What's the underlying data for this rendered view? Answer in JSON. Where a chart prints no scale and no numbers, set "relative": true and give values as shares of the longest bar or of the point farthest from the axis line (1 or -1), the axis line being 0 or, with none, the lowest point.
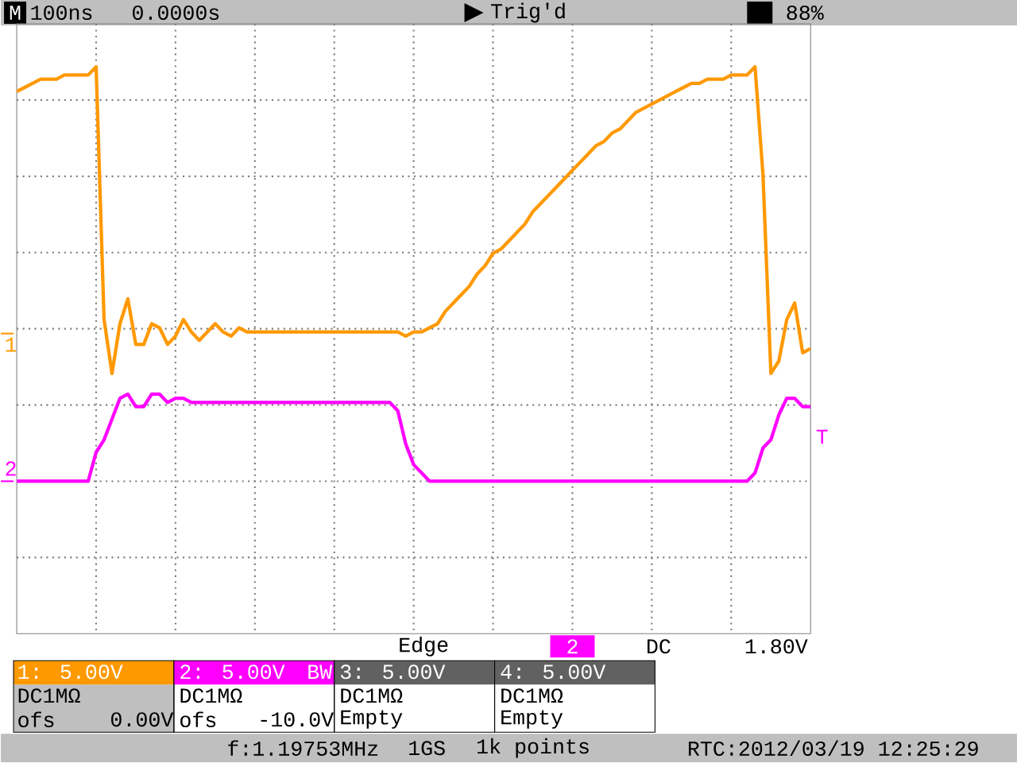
{
  "chart_data": {
    "type": "line",
    "relative": true,
    "grid": true,
    "marker": "none",
    "categories": [
      null,
      null,
      null,
      null,
      null,
      null,
      null,
      null,
      null,
      null,
      null,
      null,
      null,
      null,
      null,
      null,
      null,
      null,
      null,
      null,
      null,
      null,
      null,
      null,
      null,
      null,
      null,
      null,
      null,
      null,
      null,
      null,
      null,
      null,
      null,
      null,
      null,
      null,
      null,
      null,
      null,
      null,
      null,
      null,
      null,
      null,
      null,
      null,
      null,
      null,
      null,
      null,
      null,
      null,
      null,
      null,
      null,
      null,
      null,
      null,
      null,
      null,
      null,
      null,
      null,
      null,
      null,
      null,
      null,
      null,
      null,
      null,
      null,
      null,
      null,
      null,
      null,
      null,
      null,
      null,
      null,
      null,
      null,
      null,
      null,
      null,
      null,
      null,
      null,
      null,
      null,
      null,
      null,
      null,
      null,
      null,
      null,
      null,
      null,
      null,
      null
    ],
    "series": [
      {
        "color": "#ff9900",
        "values": [
          0.94,
          0.95,
          0.96,
          0.97,
          0.97,
          0.97,
          0.98,
          0.98,
          0.98,
          0.98,
          1.0,
          0.39,
          0.26,
          0.38,
          0.44,
          0.33,
          0.33,
          0.38,
          0.37,
          0.33,
          0.35,
          0.39,
          0.36,
          0.34,
          0.36,
          0.38,
          0.36,
          0.35,
          0.37,
          0.36,
          0.36,
          0.36,
          0.36,
          0.36,
          0.36,
          0.36,
          0.36,
          0.36,
          0.36,
          0.36,
          0.36,
          0.36,
          0.36,
          0.36,
          0.36,
          0.36,
          0.36,
          0.36,
          0.36,
          0.35,
          0.36,
          0.36,
          0.37,
          0.38,
          0.41,
          0.43,
          0.45,
          0.47,
          0.5,
          0.52,
          0.55,
          0.56,
          0.58,
          0.6,
          0.62,
          0.65,
          0.67,
          0.69,
          0.71,
          0.73,
          0.75,
          0.77,
          0.79,
          0.81,
          0.82,
          0.84,
          0.85,
          0.87,
          0.89,
          0.9,
          0.91,
          0.92,
          0.93,
          0.94,
          0.95,
          0.96,
          0.96,
          0.97,
          0.97,
          0.97,
          0.98,
          0.98,
          0.98,
          1.0,
          0.74,
          0.26,
          0.29,
          0.39,
          0.43,
          0.31,
          0.32
        ]
      },
      {
        "color": "#ff00ff",
        "values": [
          0,
          0,
          0,
          0,
          0,
          0,
          0,
          0,
          0,
          0,
          0.07,
          0.1,
          0.15,
          0.2,
          0.21,
          0.18,
          0.18,
          0.21,
          0.21,
          0.19,
          0.2,
          0.2,
          0.19,
          0.19,
          0.19,
          0.19,
          0.19,
          0.19,
          0.19,
          0.19,
          0.19,
          0.19,
          0.19,
          0.19,
          0.19,
          0.19,
          0.19,
          0.19,
          0.19,
          0.19,
          0.19,
          0.19,
          0.19,
          0.19,
          0.19,
          0.19,
          0.19,
          0.19,
          0.17,
          0.09,
          0.04,
          0.02,
          0.0,
          0,
          0,
          0,
          0,
          0,
          0,
          0,
          0,
          0,
          0,
          0,
          0,
          0,
          0,
          0,
          0,
          0,
          0,
          0,
          0,
          0,
          0,
          0,
          0,
          0,
          0,
          0,
          0,
          0,
          0,
          0,
          0,
          0,
          0,
          0,
          0,
          0,
          0,
          0,
          0,
          0.02,
          0.08,
          0.1,
          0.16,
          0.2,
          0.2,
          0.18,
          0.18
        ]
      }
    ],
    "annotations": [
      "100ns",
      "0.0000s",
      "Trig'd",
      "88%",
      "Edge",
      "2",
      "DC",
      "1.80V",
      "1: 5.00V",
      "DC1MΩ",
      "ofs",
      "0.00V",
      "2: 5.00V",
      "BW",
      "DC1MΩ",
      "ofs",
      "-10.0V",
      "3: 5.00V",
      "DC1MΩ",
      "Empty",
      "4: 5.00V",
      "DC1MΩ",
      "Empty",
      "f:1.19753MHz",
      "1GS",
      "1k points",
      "RTC:2012/03/19 12:25:29",
      "1",
      "2",
      "T",
      "M"
    ]
  }
}
